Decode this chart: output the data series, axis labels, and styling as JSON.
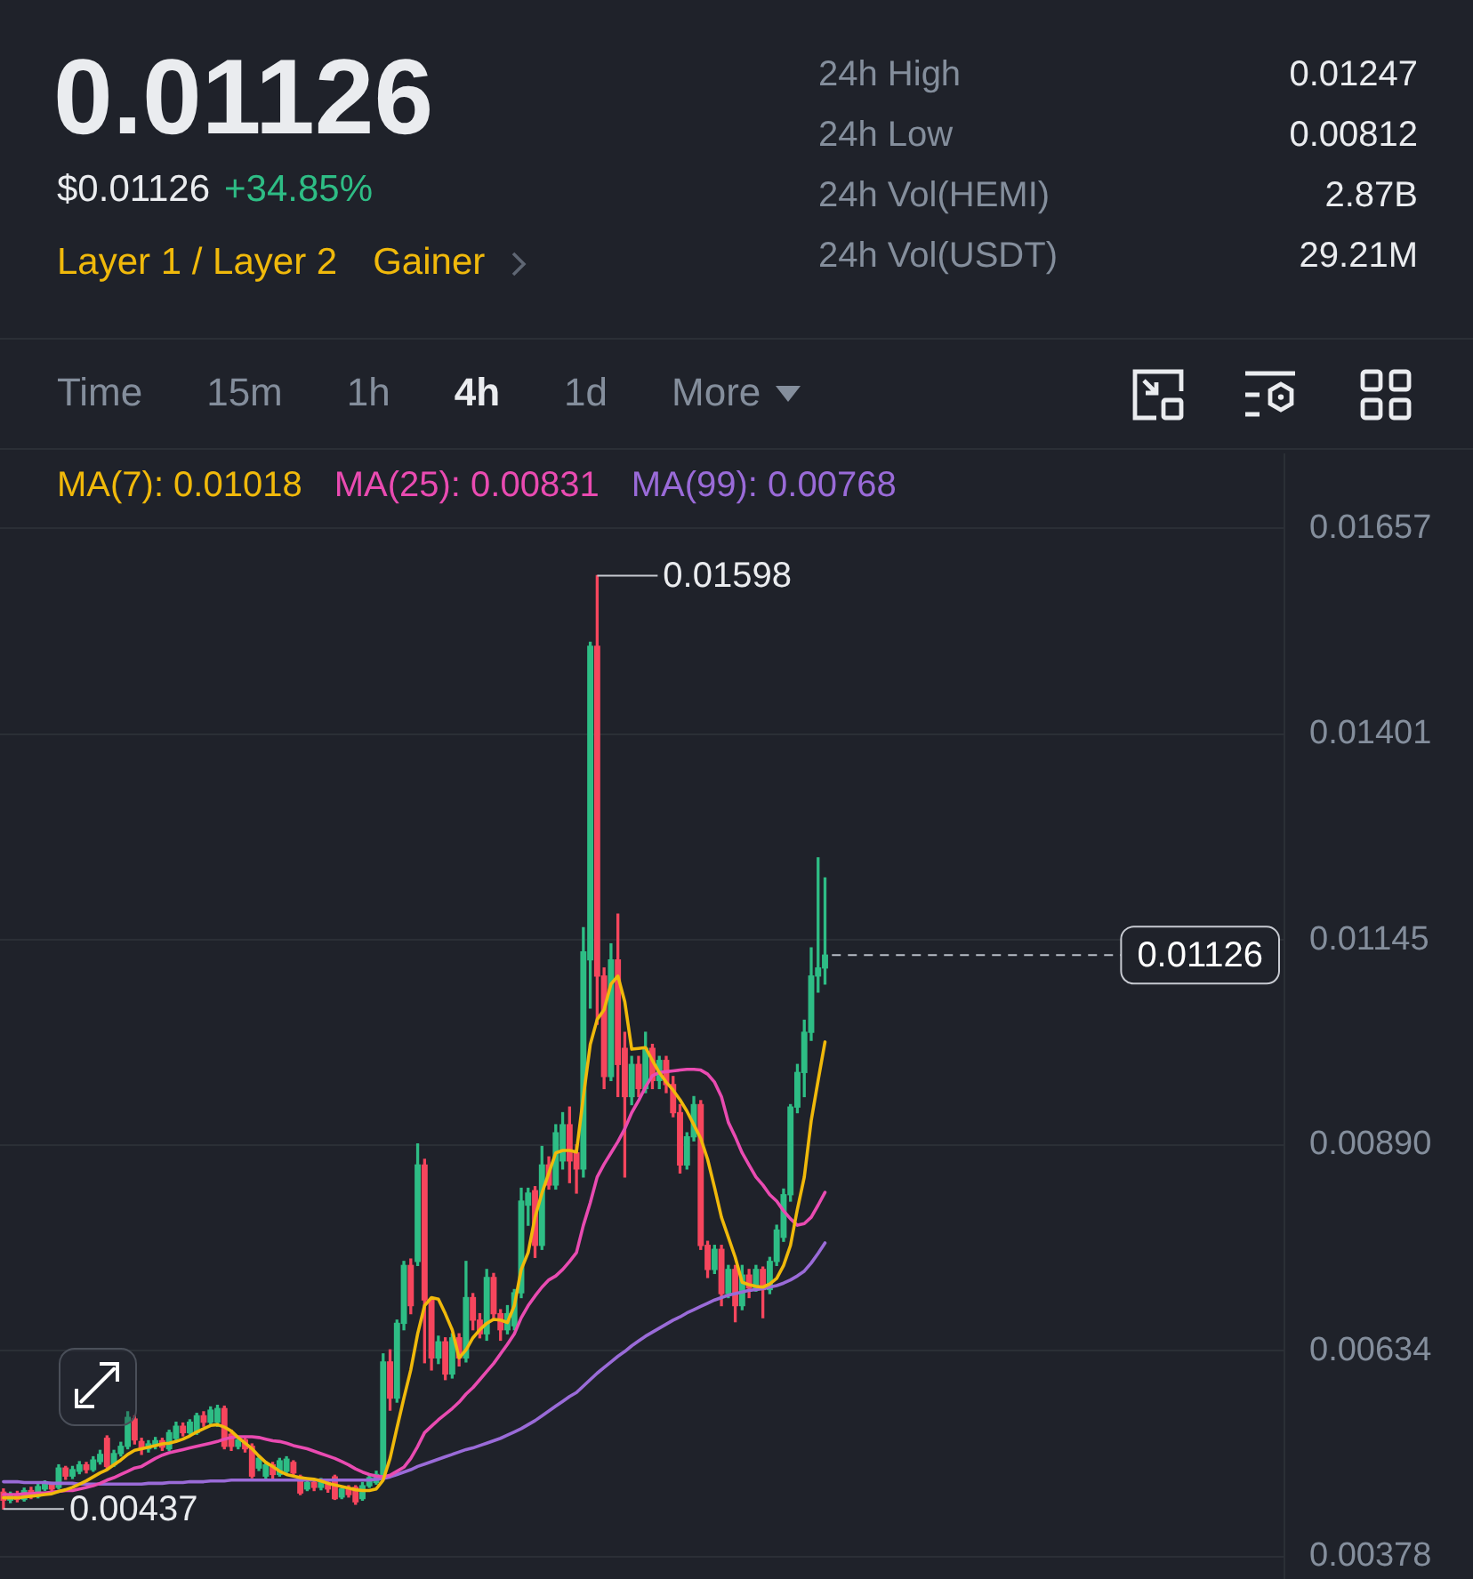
{
  "chart_data": {
    "type": "candlestick",
    "title": "0.01126",
    "categories": [
      null,
      null,
      null,
      null,
      null,
      null,
      null,
      null,
      null,
      null,
      null,
      null,
      null,
      null,
      null,
      null,
      null,
      null,
      null,
      null,
      null,
      null,
      null,
      null,
      null,
      null,
      null,
      null,
      null,
      null,
      null,
      null,
      null,
      null,
      null,
      null,
      null,
      null,
      null,
      null,
      null,
      null,
      null,
      null,
      null,
      null,
      null,
      null,
      null,
      null,
      null,
      null,
      null,
      null,
      null,
      null,
      null,
      null,
      null,
      null,
      null,
      null,
      null,
      null,
      null,
      null,
      null,
      null,
      null,
      null,
      null,
      null,
      null,
      null,
      null,
      null,
      null,
      null,
      null,
      null,
      null,
      null,
      null,
      null,
      null,
      null,
      null,
      null,
      null,
      null,
      null,
      null,
      null,
      null,
      null,
      null,
      null,
      null,
      null,
      null,
      null,
      null,
      null,
      null,
      null,
      null,
      null,
      null,
      null,
      null,
      null,
      null,
      null,
      null,
      null,
      null,
      null,
      null,
      null,
      null
    ],
    "ohlc": [
      [
        0.00458,
        0.00462,
        0.00437,
        0.00448
      ],
      [
        0.00448,
        0.00458,
        0.00445,
        0.00455
      ],
      [
        0.00455,
        0.00459,
        0.00446,
        0.00449
      ],
      [
        0.00449,
        0.00463,
        0.00447,
        0.0046
      ],
      [
        0.0046,
        0.00464,
        0.0045,
        0.00453
      ],
      [
        0.00453,
        0.00468,
        0.00451,
        0.00465
      ],
      [
        0.00462,
        0.00472,
        0.0046,
        0.00468
      ],
      [
        0.00468,
        0.0047,
        0.00458,
        0.00462
      ],
      [
        0.00464,
        0.00492,
        0.00462,
        0.00488
      ],
      [
        0.00488,
        0.0049,
        0.00474,
        0.00478
      ],
      [
        0.00478,
        0.0049,
        0.00475,
        0.00486
      ],
      [
        0.00484,
        0.00496,
        0.00481,
        0.00492
      ],
      [
        0.00492,
        0.00495,
        0.00482,
        0.00486
      ],
      [
        0.00486,
        0.00502,
        0.00484,
        0.00498
      ],
      [
        0.00496,
        0.0051,
        0.00493,
        0.00505
      ],
      [
        0.00525,
        0.00528,
        0.00486,
        0.0049
      ],
      [
        0.00492,
        0.0051,
        0.0049,
        0.00506
      ],
      [
        0.00506,
        0.0052,
        0.00503,
        0.00515
      ],
      [
        0.00515,
        0.00558,
        0.00512,
        0.00551
      ],
      [
        0.00549,
        0.00553,
        0.00518,
        0.00523
      ],
      [
        0.00521,
        0.00525,
        0.00505,
        0.00512
      ],
      [
        0.00512,
        0.00522,
        0.00508,
        0.00518
      ],
      [
        0.00516,
        0.00526,
        0.00512,
        0.00522
      ],
      [
        0.00522,
        0.00525,
        0.0051,
        0.00514
      ],
      [
        0.00512,
        0.00535,
        0.0051,
        0.00532
      ],
      [
        0.00525,
        0.00545,
        0.00522,
        0.0054
      ],
      [
        0.0054,
        0.00544,
        0.00528,
        0.00532
      ],
      [
        0.00532,
        0.00548,
        0.0053,
        0.00545
      ],
      [
        0.00532,
        0.00556,
        0.0053,
        0.00553
      ],
      [
        0.00553,
        0.00558,
        0.0054,
        0.00545
      ],
      [
        0.00545,
        0.00564,
        0.00543,
        0.0056
      ],
      [
        0.00545,
        0.00566,
        0.0054,
        0.00562
      ],
      [
        0.00562,
        0.00565,
        0.00512,
        0.00515
      ],
      [
        0.0053,
        0.00535,
        0.0051,
        0.00515
      ],
      [
        0.00515,
        0.00526,
        0.00512,
        0.00523
      ],
      [
        0.00523,
        0.00526,
        0.00508,
        0.00512
      ],
      [
        0.00515,
        0.00518,
        0.00476,
        0.00478
      ],
      [
        0.00488,
        0.00503,
        0.00485,
        0.005
      ],
      [
        0.00478,
        0.00496,
        0.00473,
        0.00492
      ],
      [
        0.00492,
        0.00495,
        0.00475,
        0.0048
      ],
      [
        0.0048,
        0.005,
        0.00478,
        0.00497
      ],
      [
        0.00484,
        0.00502,
        0.0048,
        0.00499
      ],
      [
        0.00495,
        0.00497,
        0.00478,
        0.00482
      ],
      [
        0.00477,
        0.00479,
        0.00455,
        0.00457
      ],
      [
        0.00462,
        0.00473,
        0.0046,
        0.0047
      ],
      [
        0.0047,
        0.00474,
        0.0046,
        0.00464
      ],
      [
        0.00464,
        0.00475,
        0.00461,
        0.0047
      ],
      [
        0.0047,
        0.00472,
        0.00458,
        0.00462
      ],
      [
        0.00477,
        0.00479,
        0.00449,
        0.0045
      ],
      [
        0.00452,
        0.00465,
        0.0045,
        0.00462
      ],
      [
        0.00462,
        0.00466,
        0.00452,
        0.00455
      ],
      [
        0.00464,
        0.00466,
        0.00443,
        0.00446
      ],
      [
        0.0045,
        0.0047,
        0.00448,
        0.00466
      ],
      [
        0.00466,
        0.00479,
        0.00464,
        0.00476
      ],
      [
        0.0047,
        0.00484,
        0.00468,
        0.0048
      ],
      [
        0.00479,
        0.0063,
        0.00476,
        0.0062
      ],
      [
        0.0062,
        0.00635,
        0.0056,
        0.00575
      ],
      [
        0.00575,
        0.00672,
        0.0057,
        0.00668
      ],
      [
        0.00668,
        0.00745,
        0.0066,
        0.0074
      ],
      [
        0.0074,
        0.00748,
        0.0068,
        0.0069
      ],
      [
        0.00745,
        0.00891,
        0.0074,
        0.00865
      ],
      [
        0.00865,
        0.00872,
        0.00619,
        0.00697
      ],
      [
        0.00697,
        0.007,
        0.0061,
        0.00625
      ],
      [
        0.00625,
        0.00652,
        0.00618,
        0.00645
      ],
      [
        0.00645,
        0.0065,
        0.00598,
        0.00605
      ],
      [
        0.00605,
        0.00655,
        0.006,
        0.0065
      ],
      [
        0.0065,
        0.00655,
        0.00615,
        0.00625
      ],
      [
        0.00625,
        0.00745,
        0.0062,
        0.007
      ],
      [
        0.007,
        0.00705,
        0.0066,
        0.00672
      ],
      [
        0.00672,
        0.0068,
        0.0065,
        0.00655
      ],
      [
        0.00655,
        0.00735,
        0.00647,
        0.00725
      ],
      [
        0.00725,
        0.0073,
        0.00675,
        0.0068
      ],
      [
        0.0068,
        0.00685,
        0.00647,
        0.0066
      ],
      [
        0.0066,
        0.0069,
        0.00655,
        0.0068
      ],
      [
        0.00665,
        0.0071,
        0.0066,
        0.00706
      ],
      [
        0.00706,
        0.00836,
        0.007,
        0.0082
      ],
      [
        0.00815,
        0.00836,
        0.0079,
        0.0083
      ],
      [
        0.00833,
        0.00838,
        0.0075,
        0.00765
      ],
      [
        0.00765,
        0.00888,
        0.0076,
        0.00865
      ],
      [
        0.00865,
        0.00875,
        0.00835,
        0.0084
      ],
      [
        0.0084,
        0.00915,
        0.00835,
        0.00905
      ],
      [
        0.0087,
        0.0093,
        0.0086,
        0.00915
      ],
      [
        0.00915,
        0.00937,
        0.00843,
        0.0087
      ],
      [
        0.0088,
        0.0089,
        0.0083,
        0.0086
      ],
      [
        0.0086,
        0.0116,
        0.0085,
        0.0113
      ],
      [
        0.0112,
        0.01515,
        0.0106,
        0.0151
      ],
      [
        0.0151,
        0.01598,
        0.0104,
        0.011
      ],
      [
        0.011,
        0.0111,
        0.0096,
        0.00975
      ],
      [
        0.00975,
        0.0114,
        0.0097,
        0.0112
      ],
      [
        0.0112,
        0.01177,
        0.0095,
        0.0099
      ],
      [
        0.0101,
        0.0103,
        0.0085,
        0.0095
      ],
      [
        0.0095,
        0.01,
        0.0094,
        0.0099
      ],
      [
        0.0099,
        0.01,
        0.0095,
        0.0096
      ],
      [
        0.0096,
        0.0103,
        0.00955,
        0.0101
      ],
      [
        0.0101,
        0.01015,
        0.0096,
        0.0097
      ],
      [
        0.0097,
        0.01,
        0.0096,
        0.00995
      ],
      [
        0.00995,
        0.01,
        0.00955,
        0.00965
      ],
      [
        0.00965,
        0.00975,
        0.00925,
        0.0093
      ],
      [
        0.0093,
        0.0094,
        0.00855,
        0.00865
      ],
      [
        0.00865,
        0.00905,
        0.0086,
        0.009
      ],
      [
        0.009,
        0.0095,
        0.00895,
        0.0094
      ],
      [
        0.0094,
        0.00945,
        0.0076,
        0.00765
      ],
      [
        0.00765,
        0.0077,
        0.00725,
        0.00735
      ],
      [
        0.00735,
        0.00765,
        0.0073,
        0.0076
      ],
      [
        0.0076,
        0.00765,
        0.0069,
        0.00705
      ],
      [
        0.00705,
        0.0074,
        0.007,
        0.00735
      ],
      [
        0.00735,
        0.0074,
        0.0067,
        0.0069
      ],
      [
        0.0069,
        0.0074,
        0.00685,
        0.00728
      ],
      [
        0.00728,
        0.00735,
        0.007,
        0.00712
      ],
      [
        0.00712,
        0.0074,
        0.00708,
        0.00735
      ],
      [
        0.00735,
        0.00738,
        0.00675,
        0.0071
      ],
      [
        0.0071,
        0.0075,
        0.00705,
        0.00745
      ],
      [
        0.00745,
        0.0079,
        0.0074,
        0.00784
      ],
      [
        0.00775,
        0.00835,
        0.0077,
        0.00828
      ],
      [
        0.00828,
        0.0094,
        0.0082,
        0.00937
      ],
      [
        0.00937,
        0.0099,
        0.0093,
        0.0098
      ],
      [
        0.0098,
        0.01045,
        0.0095,
        0.0103
      ],
      [
        0.0103,
        0.01135,
        0.0102,
        0.011
      ],
      [
        0.011,
        0.01247,
        0.0108,
        0.0111
      ],
      [
        0.0111,
        0.01222,
        0.0109,
        0.01126
      ]
    ],
    "colors": [
      "#f6465d",
      "#2ebd85",
      "#f6465d",
      "#2ebd85",
      "#f6465d",
      "#2ebd85",
      "#2ebd85",
      "#f6465d",
      "#2ebd85",
      "#f6465d",
      "#2ebd85",
      "#2ebd85",
      "#f6465d",
      "#2ebd85",
      "#2ebd85",
      "#f6465d",
      "#2ebd85",
      "#2ebd85",
      "#2ebd85",
      "#f6465d",
      "#f6465d",
      "#2ebd85",
      "#2ebd85",
      "#f6465d",
      "#2ebd85",
      "#2ebd85",
      "#f6465d",
      "#2ebd85",
      "#2ebd85",
      "#f6465d",
      "#2ebd85",
      "#2ebd85",
      "#f6465d",
      "#f6465d",
      "#2ebd85",
      "#f6465d",
      "#f6465d",
      "#2ebd85",
      "#2ebd85",
      "#f6465d",
      "#2ebd85",
      "#2ebd85",
      "#f6465d",
      "#f6465d",
      "#2ebd85",
      "#f6465d",
      "#2ebd85",
      "#f6465d",
      "#f6465d",
      "#2ebd85",
      "#f6465d",
      "#f6465d",
      "#2ebd85",
      "#2ebd85",
      "#2ebd85",
      "#2ebd85",
      "#f6465d",
      "#2ebd85",
      "#2ebd85",
      "#f6465d",
      "#2ebd85",
      "#f6465d",
      "#f6465d",
      "#2ebd85",
      "#f6465d",
      "#2ebd85",
      "#f6465d",
      "#2ebd85",
      "#f6465d",
      "#f6465d",
      "#2ebd85",
      "#f6465d",
      "#f6465d",
      "#2ebd85",
      "#2ebd85",
      "#2ebd85",
      "#2ebd85",
      "#f6465d",
      "#2ebd85",
      "#f6465d",
      "#2ebd85",
      "#2ebd85",
      "#f6465d",
      "#f6465d",
      "#2ebd85",
      "#2ebd85",
      "#f6465d",
      "#f6465d",
      "#2ebd85",
      "#f6465d",
      "#f6465d",
      "#2ebd85",
      "#f6465d",
      "#2ebd85",
      "#f6465d",
      "#2ebd85",
      "#f6465d",
      "#f6465d",
      "#f6465d",
      "#2ebd85",
      "#2ebd85",
      "#f6465d",
      "#f6465d",
      "#2ebd85",
      "#f6465d",
      "#2ebd85",
      "#f6465d",
      "#2ebd85",
      "#f6465d",
      "#2ebd85",
      "#f6465d",
      "#2ebd85",
      "#2ebd85",
      "#2ebd85",
      "#2ebd85",
      "#2ebd85",
      "#2ebd85",
      "#2ebd85",
      "#2ebd85",
      "#2ebd85"
    ],
    "series": [
      {
        "name": "MA(7): 0.01018",
        "color": "#f0b90b",
        "type": "line",
        "values": [
          0.00451,
          0.00451,
          0.00451,
          0.00452,
          0.00453,
          0.00454,
          0.00455,
          0.00456,
          0.00459,
          0.00461,
          0.00464,
          0.00468,
          0.00472,
          0.00477,
          0.00482,
          0.00486,
          0.00492,
          0.00498,
          0.00505,
          0.0051,
          0.00512,
          0.00514,
          0.00516,
          0.00518,
          0.00519,
          0.00521,
          0.00524,
          0.00528,
          0.00533,
          0.00537,
          0.00541,
          0.00542,
          0.00539,
          0.00534,
          0.00526,
          0.00519,
          0.00512,
          0.00503,
          0.00495,
          0.0049,
          0.00484,
          0.0048,
          0.00478,
          0.00476,
          0.00475,
          0.00474,
          0.00472,
          0.00469,
          0.00467,
          0.00465,
          0.00463,
          0.00461,
          0.0046,
          0.0046,
          0.00462,
          0.00473,
          0.005,
          0.00538,
          0.00575,
          0.0061,
          0.00655,
          0.0069,
          0.007,
          0.00698,
          0.0068,
          0.0066,
          0.00625,
          0.00635,
          0.0065,
          0.0066,
          0.00668,
          0.00673,
          0.00672,
          0.00669,
          0.0069,
          0.00735,
          0.00756,
          0.008,
          0.0083,
          0.00855,
          0.0088,
          0.00883,
          0.00883,
          0.00881,
          0.0095,
          0.01015,
          0.01046,
          0.01058,
          0.0109,
          0.011,
          0.01068,
          0.01009,
          0.0101,
          0.01011,
          0.00995,
          0.0098,
          0.00968,
          0.00958,
          0.00946,
          0.00932,
          0.00915,
          0.00898,
          0.00872,
          0.00837,
          0.008,
          0.00775,
          0.0075,
          0.00719,
          0.00716,
          0.00714,
          0.00713,
          0.00717,
          0.00724,
          0.0074,
          0.00765,
          0.0081,
          0.0085,
          0.0092,
          0.0097,
          0.01018
        ]
      },
      {
        "name": "MA(25): 0.00831",
        "color": "#e94bb1",
        "type": "line",
        "values": [
          0.00455,
          0.00455,
          0.00455,
          0.00456,
          0.00456,
          0.00457,
          0.00457,
          0.00458,
          0.00459,
          0.0046,
          0.0046,
          0.00462,
          0.00464,
          0.00466,
          0.00469,
          0.00473,
          0.00476,
          0.0048,
          0.00484,
          0.00488,
          0.0049,
          0.00495,
          0.005,
          0.00504,
          0.00507,
          0.00509,
          0.00511,
          0.00513,
          0.00515,
          0.00517,
          0.00519,
          0.00521,
          0.00524,
          0.00526,
          0.00527,
          0.00527,
          0.00527,
          0.00526,
          0.00524,
          0.00522,
          0.00521,
          0.00519,
          0.00516,
          0.00514,
          0.00512,
          0.00509,
          0.00506,
          0.00503,
          0.005,
          0.00496,
          0.00492,
          0.00487,
          0.00483,
          0.0048,
          0.00478,
          0.00477,
          0.00479,
          0.00484,
          0.00489,
          0.005,
          0.00515,
          0.00532,
          0.0054,
          0.00548,
          0.00555,
          0.00562,
          0.0057,
          0.0058,
          0.00588,
          0.00598,
          0.00608,
          0.00618,
          0.0063,
          0.00642,
          0.00655,
          0.00675,
          0.0069,
          0.00702,
          0.00713,
          0.00722,
          0.00727,
          0.00735,
          0.00745,
          0.00756,
          0.0079,
          0.00818,
          0.0085,
          0.00866,
          0.0088,
          0.00894,
          0.0091,
          0.0093,
          0.00945,
          0.00962,
          0.00976,
          0.0098,
          0.00981,
          0.00982,
          0.00983,
          0.00984,
          0.00984,
          0.00983,
          0.00978,
          0.00968,
          0.0095,
          0.00918,
          0.009,
          0.0088,
          0.00865,
          0.0085,
          0.0084,
          0.00828,
          0.0082,
          0.00808,
          0.00798,
          0.0079,
          0.00792,
          0.008,
          0.00815,
          0.00831
        ]
      },
      {
        "name": "MA(99): 0.00768",
        "color": "#9a6bd8",
        "type": "line",
        "values": [
          0.00471,
          0.00471,
          0.00471,
          0.0047,
          0.0047,
          0.0047,
          0.0047,
          0.00469,
          0.00469,
          0.00469,
          0.00469,
          0.00468,
          0.00468,
          0.00468,
          0.00468,
          0.00468,
          0.00468,
          0.00468,
          0.00468,
          0.00468,
          0.00468,
          0.00469,
          0.00469,
          0.00469,
          0.0047,
          0.0047,
          0.0047,
          0.00471,
          0.00471,
          0.00471,
          0.00472,
          0.00472,
          0.00472,
          0.00473,
          0.00473,
          0.00473,
          0.00473,
          0.00473,
          0.00473,
          0.00473,
          0.00473,
          0.00473,
          0.00473,
          0.00473,
          0.00473,
          0.00473,
          0.00473,
          0.00473,
          0.00473,
          0.00473,
          0.00473,
          0.00473,
          0.00473,
          0.00473,
          0.00474,
          0.00475,
          0.00477,
          0.0048,
          0.00483,
          0.00486,
          0.0049,
          0.00493,
          0.00496,
          0.00499,
          0.00502,
          0.00505,
          0.00508,
          0.00511,
          0.00513,
          0.00516,
          0.00519,
          0.00522,
          0.00525,
          0.00529,
          0.00533,
          0.00537,
          0.00542,
          0.00547,
          0.00553,
          0.00559,
          0.00565,
          0.00571,
          0.00577,
          0.00582,
          0.0059,
          0.00598,
          0.00606,
          0.00613,
          0.0062,
          0.00627,
          0.00633,
          0.0064,
          0.00646,
          0.00652,
          0.00657,
          0.00662,
          0.00667,
          0.00672,
          0.00676,
          0.00681,
          0.00685,
          0.00689,
          0.00693,
          0.00697,
          0.007,
          0.00703,
          0.00705,
          0.00707,
          0.00709,
          0.0071,
          0.00711,
          0.00713,
          0.00715,
          0.00718,
          0.00722,
          0.00727,
          0.00733,
          0.00743,
          0.00755,
          0.00768
        ]
      }
    ],
    "ylim": [
      0.0035,
      0.0175
    ],
    "yticks": [
      0.00378,
      0.00634,
      {
        "value": 0.0089,
        "label": "0.00890"
      },
      0.01145,
      0.01401,
      0.01657
    ],
    "grid": "y",
    "legend": "top",
    "marker": "none",
    "line_style": "solid",
    "tick_labels": "y",
    "ref_lines": [
      {
        "axis": "y",
        "value": 0.01126,
        "label": "0.01126",
        "line_style": "dashed"
      }
    ],
    "annotations": [
      "$0.01126",
      "+34.85%",
      "Layer 1 / Layer 2",
      "Gainer",
      "24h High",
      "0.01247",
      "24h Low",
      "0.00812",
      "24h Vol(HEMI)",
      "2.87B",
      "24h Vol(USDT)",
      "29.21M",
      "Time",
      "15m",
      "1h",
      "4h",
      "1d",
      "More",
      "0.01598",
      "0.00437"
    ]
  }
}
